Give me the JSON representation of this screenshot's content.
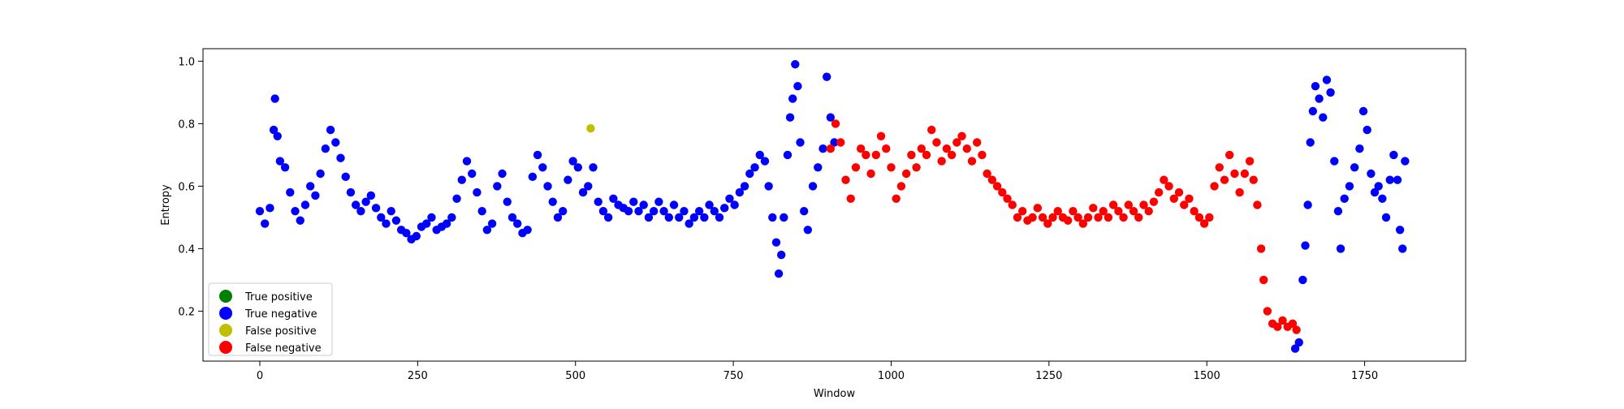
{
  "chart_data": {
    "type": "scatter",
    "title": "",
    "xlabel": "Window",
    "ylabel": "Entropy",
    "xlim": [
      -90,
      1910
    ],
    "ylim": [
      0.04,
      1.04
    ],
    "x_ticks": [
      0,
      250,
      500,
      750,
      1000,
      1250,
      1500,
      1750
    ],
    "y_ticks": [
      0.2,
      0.4,
      0.6,
      0.8,
      1.0
    ],
    "x_tick_labels": [
      "0",
      "250",
      "500",
      "750",
      "1000",
      "1250",
      "1500",
      "1750"
    ],
    "y_tick_labels": [
      "0.2",
      "0.4",
      "0.6",
      "0.8",
      "1.0"
    ],
    "grid": false,
    "legend_position": "lower-left",
    "series": [
      {
        "name": "True positive",
        "color": "#008000",
        "points": []
      },
      {
        "name": "True negative",
        "color": "#0000ff",
        "points": [
          [
            0,
            0.52
          ],
          [
            8,
            0.48
          ],
          [
            16,
            0.53
          ],
          [
            22,
            0.78
          ],
          [
            24,
            0.88
          ],
          [
            28,
            0.76
          ],
          [
            32,
            0.68
          ],
          [
            40,
            0.66
          ],
          [
            48,
            0.58
          ],
          [
            56,
            0.52
          ],
          [
            64,
            0.49
          ],
          [
            72,
            0.54
          ],
          [
            80,
            0.6
          ],
          [
            88,
            0.57
          ],
          [
            96,
            0.64
          ],
          [
            104,
            0.72
          ],
          [
            112,
            0.78
          ],
          [
            120,
            0.74
          ],
          [
            128,
            0.69
          ],
          [
            136,
            0.63
          ],
          [
            144,
            0.58
          ],
          [
            152,
            0.54
          ],
          [
            160,
            0.52
          ],
          [
            168,
            0.55
          ],
          [
            176,
            0.57
          ],
          [
            184,
            0.53
          ],
          [
            192,
            0.5
          ],
          [
            200,
            0.48
          ],
          [
            208,
            0.52
          ],
          [
            216,
            0.49
          ],
          [
            224,
            0.46
          ],
          [
            232,
            0.45
          ],
          [
            240,
            0.43
          ],
          [
            248,
            0.44
          ],
          [
            256,
            0.47
          ],
          [
            264,
            0.48
          ],
          [
            272,
            0.5
          ],
          [
            280,
            0.46
          ],
          [
            288,
            0.47
          ],
          [
            296,
            0.48
          ],
          [
            304,
            0.5
          ],
          [
            312,
            0.56
          ],
          [
            320,
            0.62
          ],
          [
            328,
            0.68
          ],
          [
            336,
            0.64
          ],
          [
            344,
            0.58
          ],
          [
            352,
            0.52
          ],
          [
            360,
            0.46
          ],
          [
            368,
            0.48
          ],
          [
            376,
            0.6
          ],
          [
            384,
            0.64
          ],
          [
            392,
            0.55
          ],
          [
            400,
            0.5
          ],
          [
            408,
            0.48
          ],
          [
            416,
            0.45
          ],
          [
            424,
            0.46
          ],
          [
            432,
            0.63
          ],
          [
            440,
            0.7
          ],
          [
            448,
            0.66
          ],
          [
            456,
            0.6
          ],
          [
            464,
            0.55
          ],
          [
            472,
            0.5
          ],
          [
            480,
            0.52
          ],
          [
            488,
            0.62
          ],
          [
            496,
            0.68
          ],
          [
            504,
            0.66
          ],
          [
            512,
            0.58
          ],
          [
            520,
            0.6
          ],
          [
            528,
            0.66
          ],
          [
            536,
            0.55
          ],
          [
            544,
            0.52
          ],
          [
            552,
            0.5
          ],
          [
            560,
            0.56
          ],
          [
            568,
            0.54
          ],
          [
            576,
            0.53
          ],
          [
            584,
            0.52
          ],
          [
            592,
            0.55
          ],
          [
            600,
            0.52
          ],
          [
            608,
            0.54
          ],
          [
            616,
            0.5
          ],
          [
            624,
            0.52
          ],
          [
            632,
            0.55
          ],
          [
            640,
            0.52
          ],
          [
            648,
            0.5
          ],
          [
            656,
            0.54
          ],
          [
            664,
            0.5
          ],
          [
            672,
            0.52
          ],
          [
            680,
            0.48
          ],
          [
            688,
            0.5
          ],
          [
            696,
            0.52
          ],
          [
            704,
            0.5
          ],
          [
            712,
            0.54
          ],
          [
            720,
            0.52
          ],
          [
            728,
            0.5
          ],
          [
            736,
            0.53
          ],
          [
            744,
            0.56
          ],
          [
            752,
            0.54
          ],
          [
            760,
            0.58
          ],
          [
            768,
            0.6
          ],
          [
            776,
            0.64
          ],
          [
            784,
            0.66
          ],
          [
            792,
            0.7
          ],
          [
            800,
            0.68
          ],
          [
            806,
            0.6
          ],
          [
            812,
            0.5
          ],
          [
            818,
            0.42
          ],
          [
            822,
            0.32
          ],
          [
            826,
            0.38
          ],
          [
            830,
            0.5
          ],
          [
            836,
            0.7
          ],
          [
            840,
            0.82
          ],
          [
            844,
            0.88
          ],
          [
            848,
            0.99
          ],
          [
            852,
            0.92
          ],
          [
            856,
            0.74
          ],
          [
            862,
            0.52
          ],
          [
            868,
            0.46
          ],
          [
            876,
            0.6
          ],
          [
            884,
            0.66
          ],
          [
            892,
            0.72
          ],
          [
            898,
            0.95
          ],
          [
            904,
            0.82
          ],
          [
            910,
            0.74
          ],
          [
            1640,
            0.08
          ],
          [
            1646,
            0.1
          ],
          [
            1652,
            0.3
          ],
          [
            1656,
            0.41
          ],
          [
            1660,
            0.54
          ],
          [
            1664,
            0.74
          ],
          [
            1668,
            0.84
          ],
          [
            1672,
            0.92
          ],
          [
            1678,
            0.88
          ],
          [
            1684,
            0.82
          ],
          [
            1690,
            0.94
          ],
          [
            1696,
            0.9
          ],
          [
            1702,
            0.68
          ],
          [
            1708,
            0.52
          ],
          [
            1712,
            0.4
          ],
          [
            1718,
            0.56
          ],
          [
            1726,
            0.6
          ],
          [
            1734,
            0.66
          ],
          [
            1742,
            0.72
          ],
          [
            1748,
            0.84
          ],
          [
            1754,
            0.78
          ],
          [
            1760,
            0.64
          ],
          [
            1766,
            0.58
          ],
          [
            1772,
            0.6
          ],
          [
            1778,
            0.56
          ],
          [
            1784,
            0.5
          ],
          [
            1790,
            0.62
          ],
          [
            1796,
            0.7
          ],
          [
            1802,
            0.62
          ],
          [
            1806,
            0.46
          ],
          [
            1810,
            0.4
          ],
          [
            1814,
            0.68
          ]
        ]
      },
      {
        "name": "False positive",
        "color": "#bfbf00",
        "points": [
          [
            524,
            0.785
          ]
        ]
      },
      {
        "name": "False negative",
        "color": "#ff0000",
        "points": [
          [
            904,
            0.72
          ],
          [
            912,
            0.8
          ],
          [
            920,
            0.74
          ],
          [
            928,
            0.62
          ],
          [
            936,
            0.56
          ],
          [
            944,
            0.66
          ],
          [
            952,
            0.72
          ],
          [
            960,
            0.7
          ],
          [
            968,
            0.64
          ],
          [
            976,
            0.7
          ],
          [
            984,
            0.76
          ],
          [
            992,
            0.72
          ],
          [
            1000,
            0.66
          ],
          [
            1008,
            0.56
          ],
          [
            1016,
            0.6
          ],
          [
            1024,
            0.64
          ],
          [
            1032,
            0.7
          ],
          [
            1040,
            0.66
          ],
          [
            1048,
            0.72
          ],
          [
            1056,
            0.7
          ],
          [
            1064,
            0.78
          ],
          [
            1072,
            0.74
          ],
          [
            1080,
            0.68
          ],
          [
            1088,
            0.72
          ],
          [
            1096,
            0.7
          ],
          [
            1104,
            0.74
          ],
          [
            1112,
            0.76
          ],
          [
            1120,
            0.72
          ],
          [
            1128,
            0.68
          ],
          [
            1136,
            0.74
          ],
          [
            1144,
            0.7
          ],
          [
            1152,
            0.64
          ],
          [
            1160,
            0.62
          ],
          [
            1168,
            0.6
          ],
          [
            1176,
            0.58
          ],
          [
            1184,
            0.56
          ],
          [
            1192,
            0.54
          ],
          [
            1200,
            0.5
          ],
          [
            1208,
            0.52
          ],
          [
            1216,
            0.49
          ],
          [
            1224,
            0.5
          ],
          [
            1232,
            0.53
          ],
          [
            1240,
            0.5
          ],
          [
            1248,
            0.48
          ],
          [
            1256,
            0.5
          ],
          [
            1264,
            0.52
          ],
          [
            1272,
            0.5
          ],
          [
            1280,
            0.49
          ],
          [
            1288,
            0.52
          ],
          [
            1296,
            0.5
          ],
          [
            1304,
            0.48
          ],
          [
            1312,
            0.5
          ],
          [
            1320,
            0.53
          ],
          [
            1328,
            0.5
          ],
          [
            1336,
            0.52
          ],
          [
            1344,
            0.5
          ],
          [
            1352,
            0.54
          ],
          [
            1360,
            0.52
          ],
          [
            1368,
            0.5
          ],
          [
            1376,
            0.54
          ],
          [
            1384,
            0.52
          ],
          [
            1392,
            0.5
          ],
          [
            1400,
            0.54
          ],
          [
            1408,
            0.52
          ],
          [
            1416,
            0.55
          ],
          [
            1424,
            0.58
          ],
          [
            1432,
            0.62
          ],
          [
            1440,
            0.6
          ],
          [
            1448,
            0.56
          ],
          [
            1456,
            0.58
          ],
          [
            1464,
            0.54
          ],
          [
            1472,
            0.56
          ],
          [
            1480,
            0.52
          ],
          [
            1488,
            0.5
          ],
          [
            1496,
            0.48
          ],
          [
            1504,
            0.5
          ],
          [
            1512,
            0.6
          ],
          [
            1520,
            0.66
          ],
          [
            1528,
            0.62
          ],
          [
            1536,
            0.7
          ],
          [
            1544,
            0.64
          ],
          [
            1552,
            0.58
          ],
          [
            1560,
            0.64
          ],
          [
            1568,
            0.68
          ],
          [
            1574,
            0.62
          ],
          [
            1580,
            0.54
          ],
          [
            1586,
            0.4
          ],
          [
            1590,
            0.3
          ],
          [
            1596,
            0.2
          ],
          [
            1604,
            0.16
          ],
          [
            1612,
            0.15
          ],
          [
            1620,
            0.17
          ],
          [
            1628,
            0.15
          ],
          [
            1636,
            0.16
          ],
          [
            1642,
            0.14
          ]
        ]
      }
    ]
  }
}
